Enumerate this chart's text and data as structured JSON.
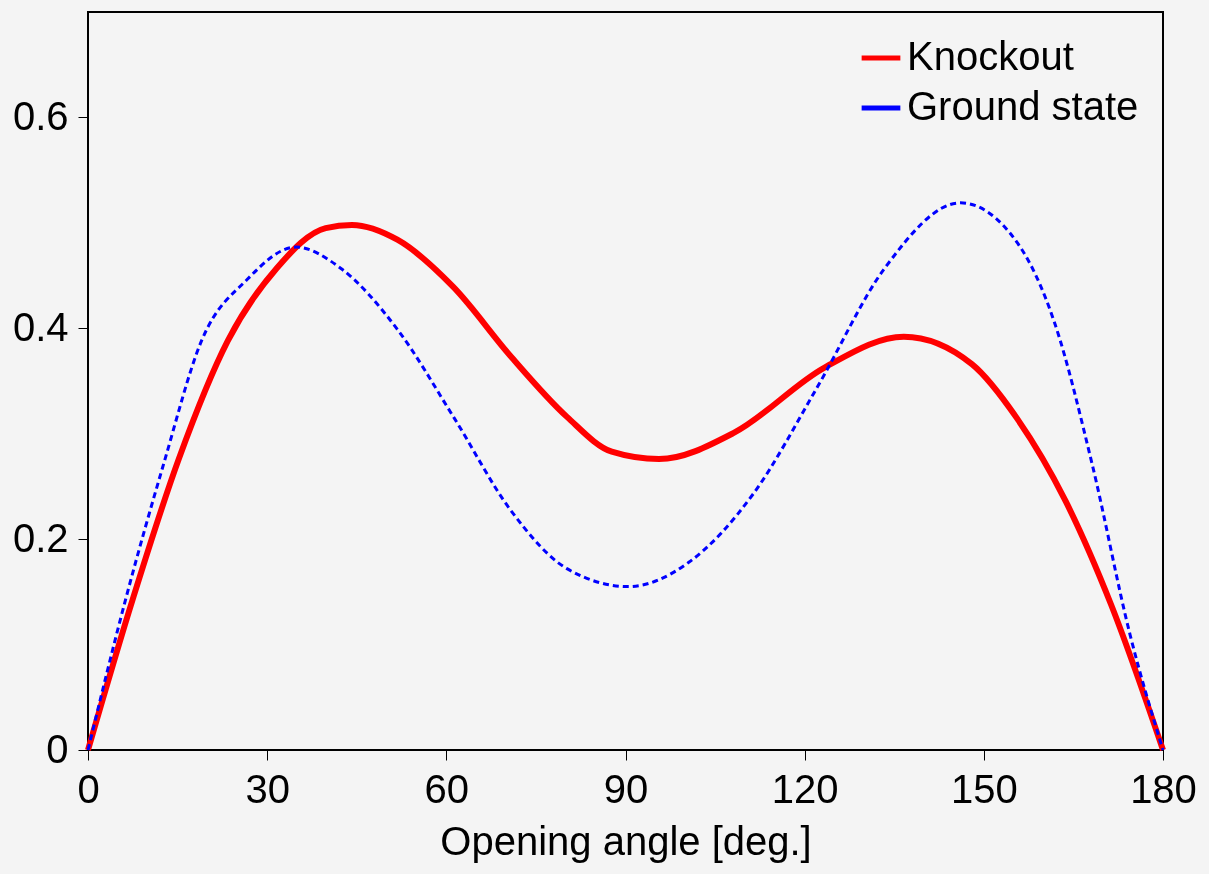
{
  "chart_data": {
    "type": "line",
    "xlabel": "Opening angle [deg.]",
    "xlim": [
      0,
      180
    ],
    "xticks": [
      0,
      30,
      60,
      90,
      120,
      150,
      180
    ],
    "ylim": [
      0,
      0.7
    ],
    "yticks": [
      0,
      0.2,
      0.4,
      0.6
    ],
    "grid": false,
    "legend": "top right",
    "series": [
      {
        "name": "Knockout",
        "color": "#ff0000",
        "line_style": "solid",
        "x": [
          0,
          7.6,
          15.2,
          23.4,
          31.6,
          39.8,
          44.2,
          51.8,
          61.2,
          70.7,
          80.2,
          87.7,
          95.6,
          108.2,
          123.4,
          136.6,
          148.0,
          155.5,
          163.7,
          171.3,
          180
        ],
        "values": [
          0,
          0.145,
          0.276,
          0.388,
          0.457,
          0.495,
          0.498,
          0.484,
          0.439,
          0.374,
          0.316,
          0.283,
          0.276,
          0.301,
          0.363,
          0.392,
          0.366,
          0.315,
          0.236,
          0.138,
          0
        ]
      },
      {
        "name": "Ground state",
        "color": "#0000ff",
        "line_style": "dashed",
        "x": [
          0,
          6.4,
          12.7,
          19.0,
          26.6,
          34.8,
          42.3,
          51.8,
          61.3,
          70.7,
          80.2,
          90.5,
          100.6,
          111.4,
          122.1,
          133.4,
          146.1,
          155.5,
          161.8,
          168.1,
          174.5,
          180
        ],
        "values": [
          0,
          0.145,
          0.272,
          0.388,
          0.446,
          0.477,
          0.457,
          0.399,
          0.315,
          0.228,
          0.172,
          0.155,
          0.178,
          0.243,
          0.344,
          0.457,
          0.519,
          0.482,
          0.406,
          0.272,
          0.109,
          0
        ]
      }
    ]
  }
}
